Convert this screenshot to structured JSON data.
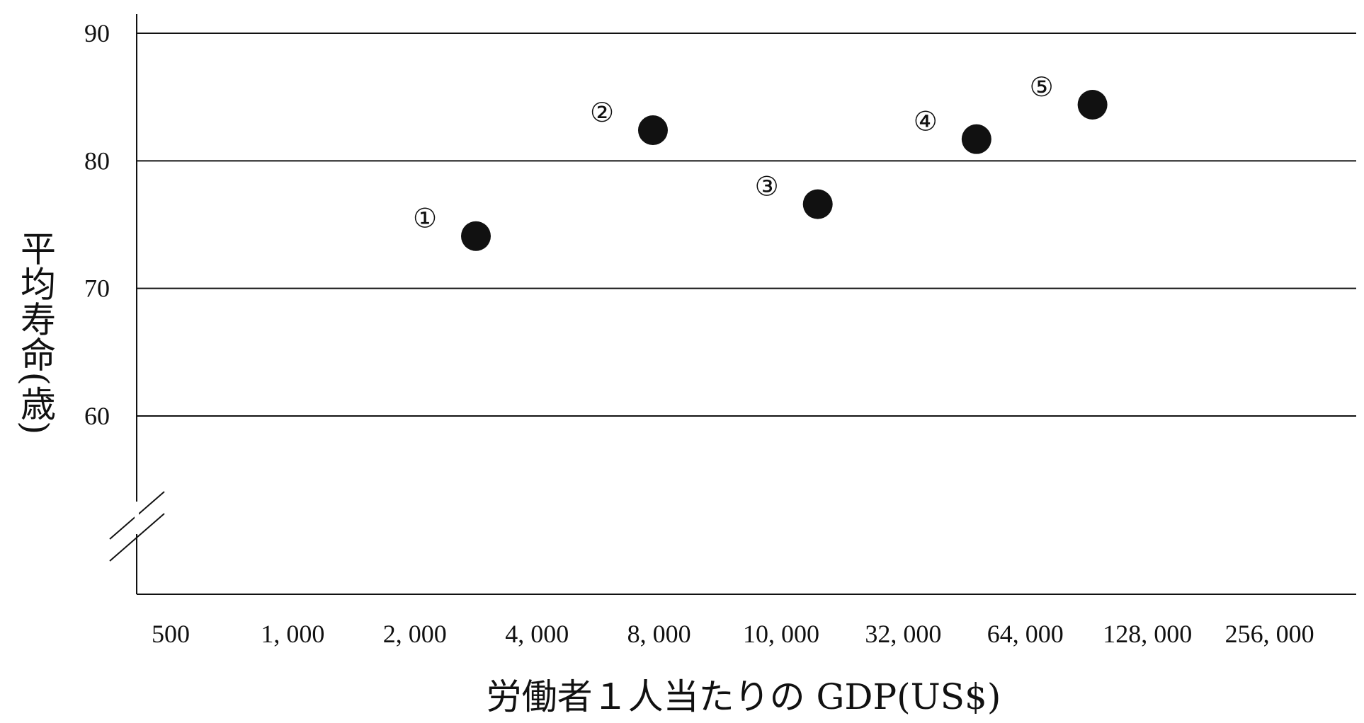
{
  "chart_data": {
    "type": "scatter",
    "xlabel": "労働者１人当たりの GDP(US$)",
    "ylabel": "平均寿命(歳)",
    "x_tick_labels": [
      "500",
      "1, 000",
      "2, 000",
      "4, 000",
      "8, 000",
      "10, 000",
      "32, 000",
      "64, 000",
      "128, 000",
      "256, 000"
    ],
    "y_ticks": [
      60,
      70,
      80,
      90
    ],
    "y_tick_labels": [
      "60",
      "70",
      "80",
      "90"
    ],
    "ylim": [
      46,
      91.5
    ],
    "y_axis_break": true,
    "grid": "horizontal",
    "points": [
      {
        "label": "①",
        "x_category_position": 2.5,
        "y": 74.1
      },
      {
        "label": "②",
        "x_category_position": 3.95,
        "y": 82.4
      },
      {
        "label": "③",
        "x_category_position": 5.3,
        "y": 76.6
      },
      {
        "label": "④",
        "x_category_position": 6.6,
        "y": 81.7
      },
      {
        "label": "⑤",
        "x_category_position": 7.55,
        "y": 84.4
      }
    ],
    "colors": {
      "point": "#111111",
      "grid": "#111111",
      "axis": "#111111"
    }
  }
}
